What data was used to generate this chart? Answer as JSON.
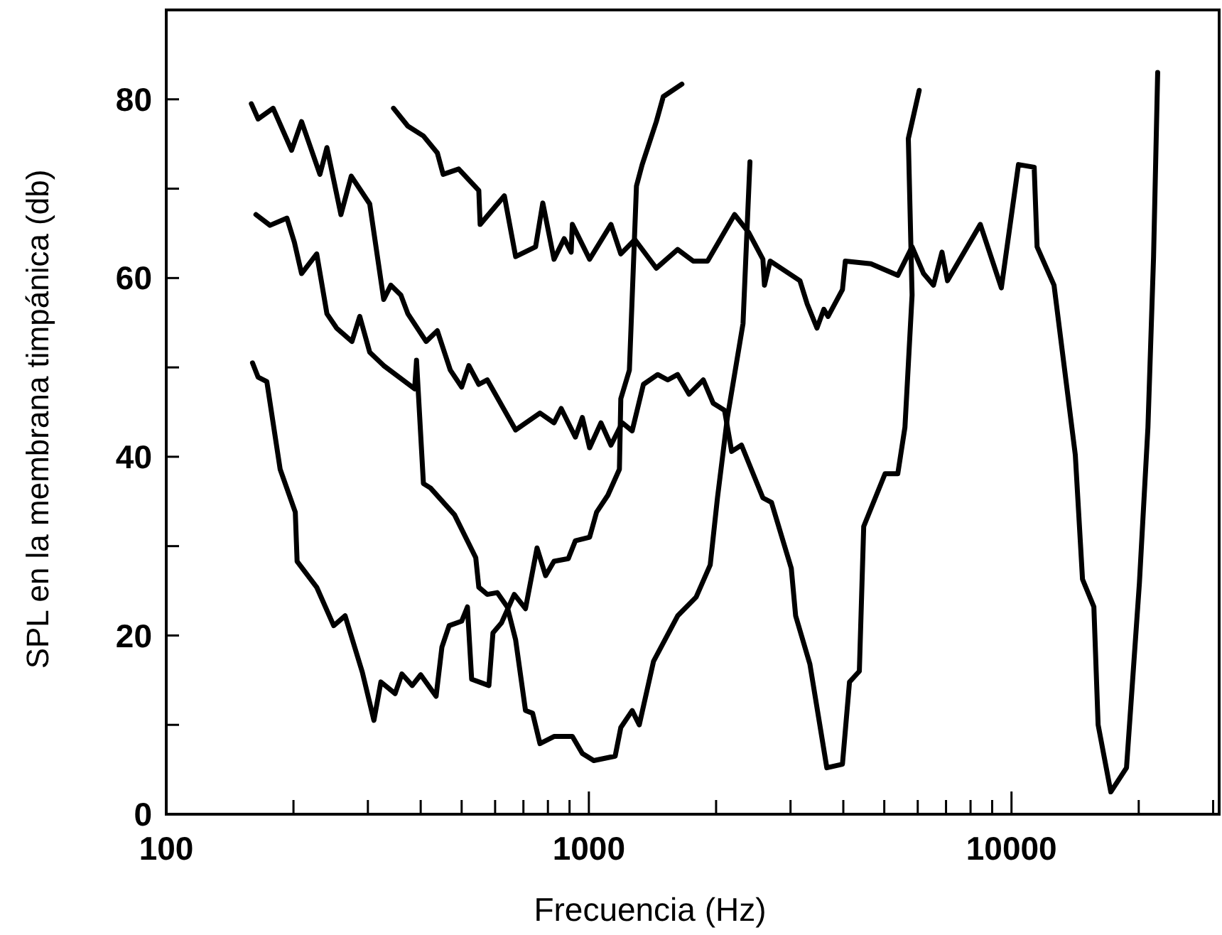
{
  "chart_data": {
    "type": "line",
    "xlabel": "Frecuencia (Hz)",
    "ylabel": "SPL en la membrana timpánica (db)",
    "log": "x",
    "xlim": [
      100,
      31000
    ],
    "ylim": [
      0,
      90
    ],
    "xticks": [
      100,
      {
        "value": 200,
        "label": null
      },
      {
        "value": 300,
        "label": null
      },
      {
        "value": 400,
        "label": null
      },
      {
        "value": 500,
        "label": null
      },
      {
        "value": 600,
        "label": null
      },
      {
        "value": 700,
        "label": null
      },
      {
        "value": 800,
        "label": null
      },
      {
        "value": 900,
        "label": null
      },
      1000,
      {
        "value": 2000,
        "label": null
      },
      {
        "value": 3000,
        "label": null
      },
      {
        "value": 4000,
        "label": null
      },
      {
        "value": 5000,
        "label": null
      },
      {
        "value": 6000,
        "label": null
      },
      {
        "value": 7000,
        "label": null
      },
      {
        "value": 8000,
        "label": null
      },
      {
        "value": 9000,
        "label": null
      },
      10000,
      {
        "value": 20000,
        "label": null
      },
      {
        "value": 30000,
        "label": null
      }
    ],
    "yticks": [
      0,
      {
        "value": 10,
        "label": null
      },
      20,
      {
        "value": 30,
        "label": null
      },
      40,
      {
        "value": 50,
        "label": null
      },
      60,
      {
        "value": 70,
        "label": null
      },
      80
    ],
    "marker": "none",
    "line_style": "solid",
    "series": [
      {
        "color": "#000000",
        "x": [
          160,
          165,
          173,
          186,
          202,
          204,
          227,
          249,
          265,
          291,
          310,
          322,
          348,
          361,
          382,
          400,
          435,
          449,
          467,
          500,
          516,
          528,
          580,
          593,
          621,
          666,
          708,
          754,
          790,
          827,
          894,
          929,
          1004,
          1043,
          1109,
          1181,
          1190,
          1247,
          1296,
          1337,
          1444,
          1500,
          1660
        ],
        "values": [
          50.5,
          48.9,
          48.4,
          38.6,
          33.8,
          28.3,
          25.4,
          21.1,
          22.2,
          15.9,
          10.5,
          14.8,
          13.5,
          15.7,
          14.4,
          15.6,
          13.2,
          18.7,
          21.1,
          21.6,
          23.2,
          15.1,
          14.4,
          20.3,
          21.4,
          24.6,
          23,
          29.8,
          26.7,
          28.3,
          28.6,
          30.6,
          31,
          33.8,
          35.7,
          38.6,
          46.5,
          49.7,
          70.3,
          72.7,
          77.5,
          80.3,
          81.7
        ]
      },
      {
        "color": "#000000",
        "x": [
          163,
          176,
          193,
          201,
          209,
          227,
          240,
          253,
          275,
          287,
          303,
          327,
          387,
          391,
          406,
          422,
          481,
          540,
          549,
          575,
          607,
          641,
          671,
          708,
          736,
          766,
          827,
          914,
          965,
          1027,
          1154,
          1190,
          1266,
          1316,
          1422,
          1622,
          1794,
          1937,
          2015,
          2127,
          2316,
          2405
        ],
        "values": [
          67.1,
          65.9,
          66.7,
          64,
          60.5,
          62.7,
          56,
          54.4,
          52.9,
          55.7,
          51.7,
          50.2,
          47.6,
          50.8,
          37,
          36.5,
          33.5,
          28.7,
          25.4,
          24.6,
          24.8,
          23.2,
          19.5,
          11.6,
          11.3,
          7.9,
          8.7,
          8.7,
          6.8,
          6,
          6.5,
          9.7,
          11.6,
          10,
          17.1,
          22.2,
          24.3,
          27.9,
          35.4,
          44.4,
          54.9,
          73
        ]
      },
      {
        "color": "#000000",
        "x": [
          159,
          165,
          179,
          198,
          209,
          231,
          240,
          259,
          274,
          303,
          327,
          340,
          359,
          373,
          412,
          438,
          470,
          500,
          520,
          549,
          575,
          671,
          766,
          827,
          860,
          929,
          965,
          1004,
          1068,
          1128,
          1199,
          1266,
          1346,
          1455,
          1537,
          1622,
          1726,
          1865,
          1968,
          2094,
          2177,
          2297,
          2581,
          2704,
          3013,
          3085,
          3334,
          3656,
          3981,
          4137,
          4365,
          4470,
          5021,
          5382,
          5596,
          5818,
          5700,
          6048
        ],
        "values": [
          79.5,
          77.8,
          79,
          74.3,
          77.5,
          71.6,
          74.6,
          67.1,
          71.4,
          68.3,
          57.6,
          59.2,
          58.1,
          56,
          52.9,
          54.1,
          49.7,
          47.8,
          50.2,
          48.1,
          48.6,
          43,
          44.9,
          43.8,
          45.4,
          42.2,
          44.4,
          41,
          43.8,
          41.3,
          43.8,
          42.9,
          48.1,
          49.2,
          48.6,
          49.2,
          47,
          48.6,
          46,
          45.2,
          40.6,
          41.3,
          35.4,
          34.9,
          27.5,
          22.2,
          16.8,
          5.2,
          5.6,
          14.8,
          16,
          32.2,
          38.1,
          38.1,
          43.3,
          58.1,
          75.6,
          81
        ]
      },
      {
        "color": "#000000",
        "x": [
          345,
          373,
          406,
          438,
          452,
          492,
          549,
          553,
          631,
          671,
          748,
          778,
          827,
          874,
          908,
          914,
          1004,
          1128,
          1190,
          1285,
          1444,
          1622,
          1766,
          1909,
          2212,
          2388,
          2581,
          2603,
          2685,
          3158,
          3285,
          3465,
          3597,
          3681,
          3981,
          4044,
          4648,
          5382,
          5818,
          6194,
          6537,
          6847,
          7056,
          8437,
          9462,
          10388,
          11316,
          11496,
          12607,
          14158,
          14724,
          15664,
          16031,
          17178,
          18712,
          20077,
          21031,
          21685,
          22176
        ],
        "values": [
          79,
          77,
          75.9,
          74,
          71.6,
          72.2,
          69.8,
          66,
          69.2,
          62.4,
          63.5,
          68.4,
          62.1,
          64.4,
          62.9,
          66,
          62.1,
          66,
          62.7,
          64.3,
          61.1,
          63.2,
          61.9,
          61.9,
          67.1,
          65.1,
          62.1,
          59.2,
          61.9,
          59.7,
          57.1,
          54.4,
          56.5,
          55.7,
          58.7,
          61.9,
          61.6,
          60.3,
          63.5,
          60.5,
          59.2,
          62.9,
          59.7,
          66,
          58.9,
          72.7,
          72.4,
          63.5,
          59.2,
          40.2,
          26.3,
          23.2,
          10,
          2.5,
          5.2,
          25.9,
          43.3,
          62.4,
          83
        ]
      }
    ]
  }
}
